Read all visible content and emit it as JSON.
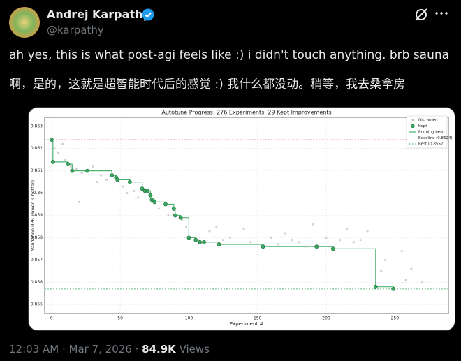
{
  "author": {
    "name": "Andrej Karpathy",
    "handle": "@karpathy"
  },
  "tweet": {
    "lines": [
      "ah yes, this is what post-agi feels like :) i didn't touch anything. brb sauna",
      "啊，是的，这就是超智能时代后的感觉 :) 我什么都没动。稍等，我去桑拿房"
    ]
  },
  "chart_data": {
    "type": "scatter",
    "title": "Autotune Progress: 276 Experiments, 29 Kept Improvements",
    "xlabel": "Experiment #",
    "ylabel": "Validation BPB (lower is better)",
    "xlim": [
      -5,
      289
    ],
    "ylim": [
      0.8546,
      0.8634
    ],
    "xticks": [
      0,
      50,
      100,
      150,
      200,
      250
    ],
    "yticks": [
      0.855,
      0.856,
      0.857,
      0.858,
      0.859,
      0.86,
      0.861,
      0.862,
      0.863
    ],
    "grid": true,
    "legend": "upper right",
    "series": [
      {
        "name": "Discarded",
        "color": "#bdbdbd",
        "x": [
          2,
          5,
          8,
          10,
          14,
          18,
          20,
          22,
          30,
          33,
          36,
          40,
          52,
          55,
          60,
          63,
          78,
          85,
          95,
          98,
          115,
          120,
          125,
          130,
          140,
          145,
          160,
          165,
          170,
          175,
          180,
          185,
          190,
          200,
          210,
          215,
          220,
          225,
          230,
          240,
          243,
          255,
          258,
          262,
          270
        ],
        "values": [
          0.862,
          0.8618,
          0.8622,
          0.8615,
          0.8612,
          0.8611,
          0.8596,
          0.8609,
          0.8612,
          0.8605,
          0.8608,
          0.8606,
          0.8603,
          0.86,
          0.8601,
          0.8598,
          0.8593,
          0.859,
          0.8588,
          0.8585,
          0.8583,
          0.8585,
          0.8579,
          0.858,
          0.8584,
          0.8578,
          0.858,
          0.8577,
          0.8582,
          0.8579,
          0.8578,
          0.8576,
          0.8586,
          0.858,
          0.8579,
          0.8584,
          0.8578,
          0.8579,
          0.8583,
          0.8565,
          0.857,
          0.8574,
          0.8561,
          0.8566,
          0.856
        ]
      },
      {
        "name": "Kept",
        "color": "#3aa860",
        "x": [
          0,
          1,
          12,
          15,
          26,
          44,
          47,
          48,
          57,
          66,
          68,
          70,
          72,
          73,
          75,
          83,
          89,
          90,
          94,
          100,
          105,
          108,
          111,
          122,
          154,
          193,
          205,
          236,
          249
        ],
        "values": [
          0.8624,
          0.8614,
          0.8613,
          0.861,
          0.861,
          0.8608,
          0.8607,
          0.8606,
          0.8605,
          0.8602,
          0.8601,
          0.8601,
          0.8599,
          0.8597,
          0.8596,
          0.8595,
          0.8593,
          0.859,
          0.8589,
          0.858,
          0.8579,
          0.8578,
          0.8578,
          0.8577,
          0.8576,
          0.8576,
          0.8575,
          0.8558,
          0.8557
        ]
      }
    ],
    "step_line": {
      "name": "Running best",
      "color": "#4cb372"
    },
    "reference_lines": [
      {
        "name": "Baseline (0.8624)",
        "value": 0.8624,
        "color": "#e07070"
      },
      {
        "name": "Best (0.8557)",
        "value": 0.8557,
        "color": "#3aa860"
      }
    ]
  },
  "footer": {
    "time": "12:03 AM",
    "date": "Mar 7, 2026",
    "views": "84.9K",
    "views_label": "Views"
  }
}
